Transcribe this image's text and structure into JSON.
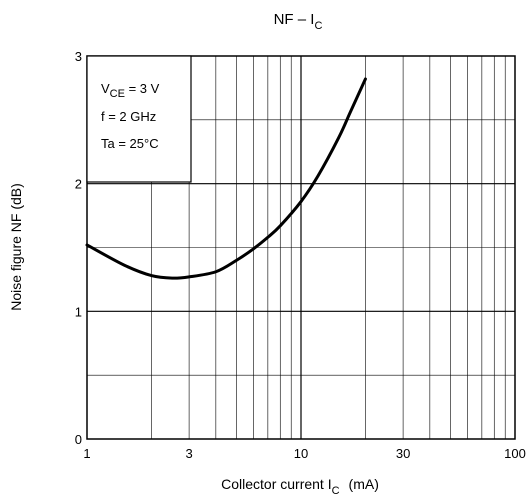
{
  "chart_data": {
    "type": "line",
    "title": {
      "main": "NF – I",
      "sub": "C"
    },
    "xlabel": {
      "main": "Collector current   I",
      "sub": "C",
      "unit": "(mA)"
    },
    "ylabel": "Noise figure   NF    (dB)",
    "x_scale": "log",
    "xlim": [
      1,
      100
    ],
    "ylim": [
      0,
      3
    ],
    "x_ticks": [
      {
        "value": 1,
        "label": "1"
      },
      {
        "value": 3,
        "label": "3"
      },
      {
        "value": 10,
        "label": "10"
      },
      {
        "value": 30,
        "label": "30"
      },
      {
        "value": 100,
        "label": "100"
      }
    ],
    "y_ticks": [
      {
        "value": 0,
        "label": "0"
      },
      {
        "value": 1,
        "label": "1"
      },
      {
        "value": 2,
        "label": "2"
      },
      {
        "value": 3,
        "label": "3"
      }
    ],
    "x_minor_grid": [
      2,
      3,
      4,
      5,
      6,
      7,
      8,
      9,
      20,
      30,
      40,
      50,
      60,
      70,
      80,
      90
    ],
    "y_minor_grid": [
      0.5,
      1.5,
      2.5
    ],
    "grid": true,
    "conditions": [
      {
        "main": "V",
        "sub": "CE",
        "rest": " = 3 V"
      },
      {
        "main": "f = 2 GHz"
      },
      {
        "main": "Ta = 25°C"
      }
    ],
    "series": [
      {
        "x": [
          1,
          1.5,
          2,
          2.5,
          3,
          4,
          5,
          6,
          7,
          8,
          10,
          12,
          15,
          17,
          20
        ],
        "y": [
          1.52,
          1.36,
          1.28,
          1.26,
          1.27,
          1.31,
          1.4,
          1.49,
          1.58,
          1.67,
          1.86,
          2.06,
          2.36,
          2.56,
          2.82
        ]
      }
    ]
  }
}
